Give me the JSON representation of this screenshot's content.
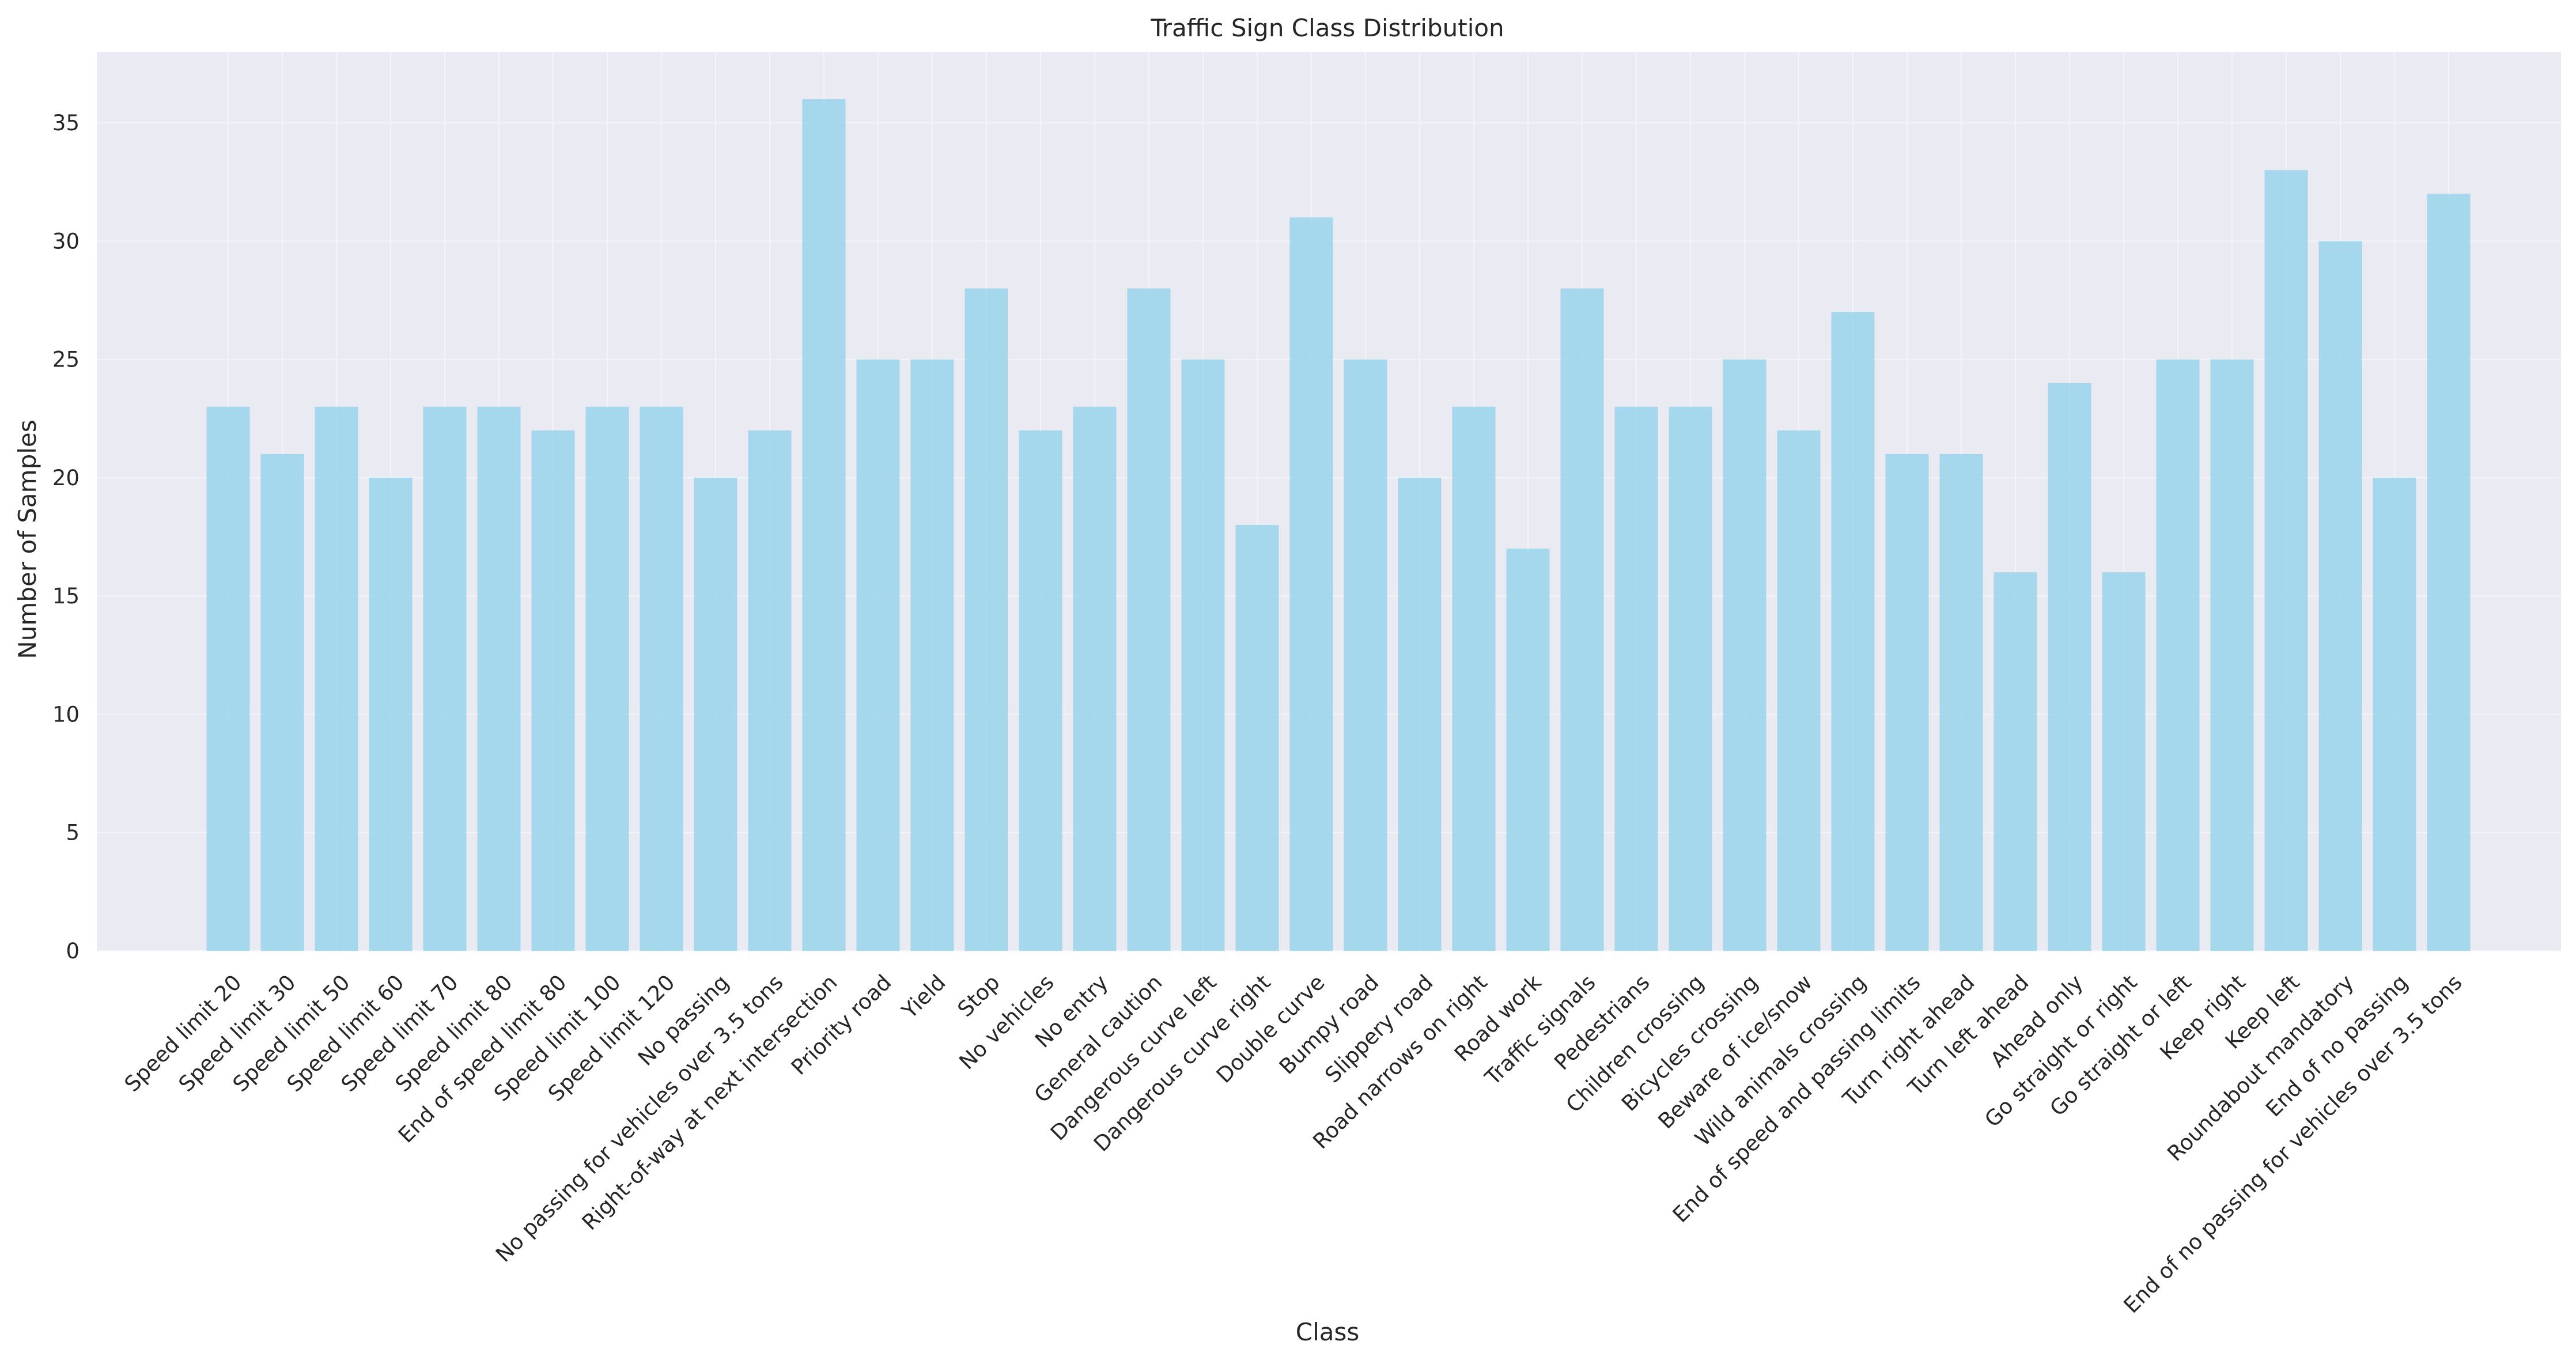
{
  "chart_data": {
    "type": "bar",
    "title": "Traffic Sign Class Distribution",
    "xlabel": "Class",
    "ylabel": "Number of Samples",
    "ylim": [
      0,
      38
    ],
    "yticks": [
      0,
      5,
      10,
      15,
      20,
      25,
      30,
      35
    ],
    "grid": true,
    "legend": "none",
    "bar_color": "#87CEEB",
    "background_color": "#EAEAF2",
    "categories": [
      "Speed limit 20",
      "Speed limit 30",
      "Speed limit 50",
      "Speed limit 60",
      "Speed limit 70",
      "Speed limit 80",
      "End of speed limit 80",
      "Speed limit 100",
      "Speed limit 120",
      "No passing",
      "No passing for vehicles over 3.5 tons",
      "Right-of-way at next intersection",
      "Priority road",
      "Yield",
      "Stop",
      "No vehicles",
      "No entry",
      "General caution",
      "Dangerous curve left",
      "Dangerous curve right",
      "Double curve",
      "Bumpy road",
      "Slippery road",
      "Road narrows on right",
      "Road work",
      "Traffic signals",
      "Pedestrians",
      "Children crossing",
      "Bicycles crossing",
      "Beware of ice/snow",
      "Wild animals crossing",
      "End of speed and passing limits",
      "Turn right ahead",
      "Turn left ahead",
      "Ahead only",
      "Go straight or right",
      "Go straight or left",
      "Keep right",
      "Keep left",
      "Roundabout mandatory",
      "End of no passing",
      "End of no passing for vehicles over 3.5 tons"
    ],
    "values": [
      23,
      21,
      23,
      20,
      23,
      23,
      22,
      23,
      23,
      20,
      22,
      36,
      25,
      25,
      28,
      22,
      23,
      28,
      25,
      18,
      31,
      25,
      20,
      23,
      17,
      28,
      23,
      23,
      25,
      22,
      27,
      21,
      21,
      16,
      24,
      16,
      25,
      25,
      33,
      30,
      20,
      32
    ]
  }
}
